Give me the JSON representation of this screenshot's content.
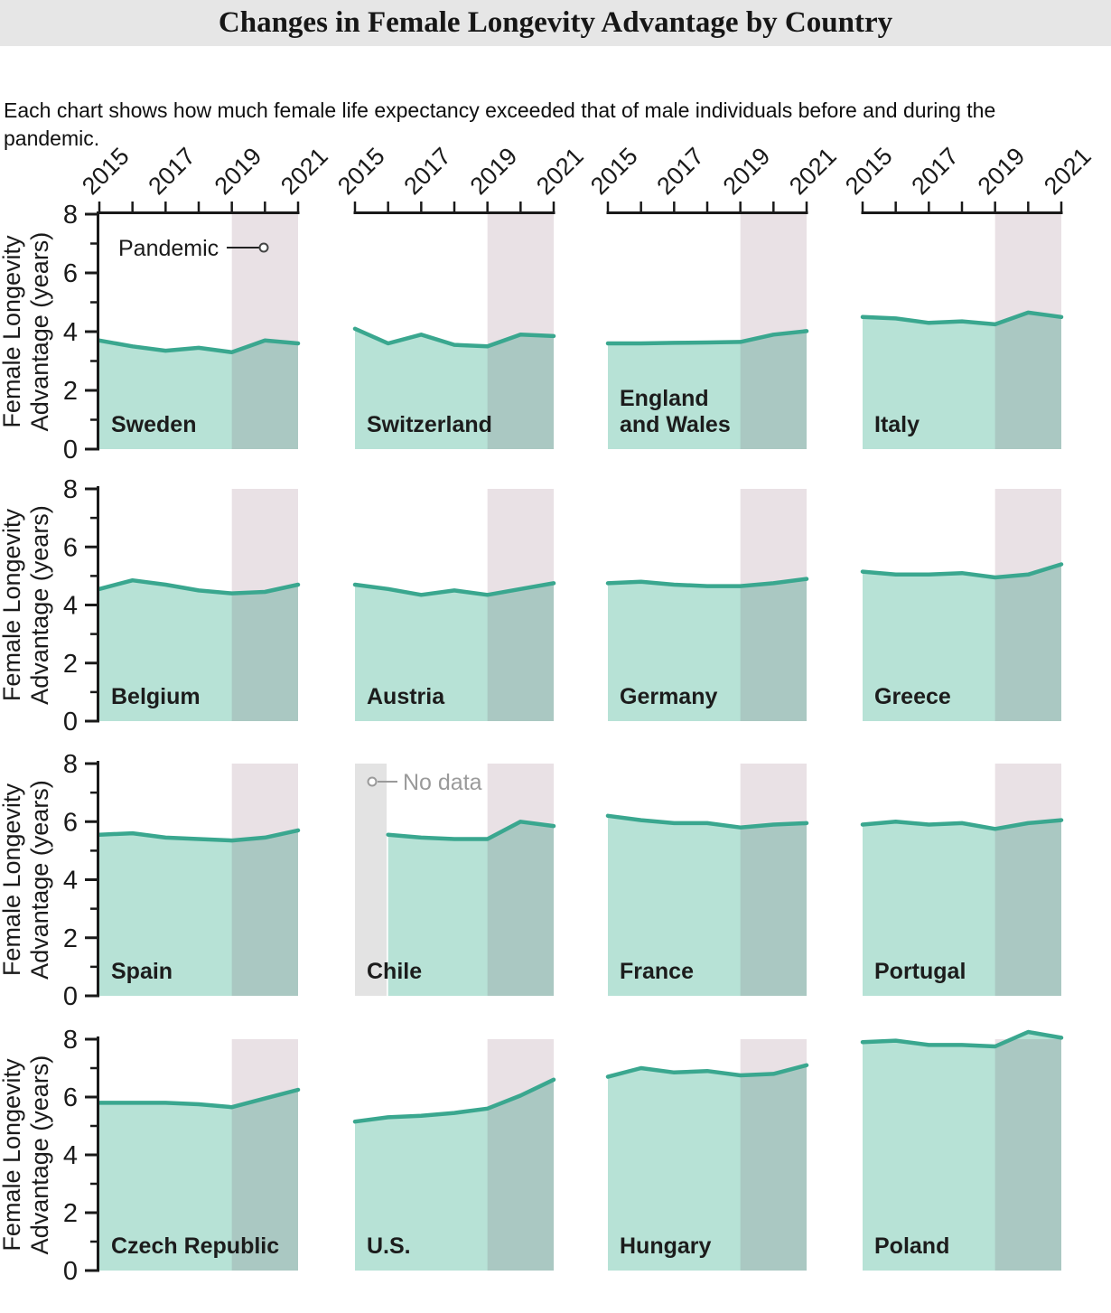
{
  "header": {
    "title": "Changes in Female Longevity Advantage by Country"
  },
  "subtitle": "Each chart shows how much female life expectancy exceeded that of male individuals before and during the pandemic.",
  "colors": {
    "title_bar_bg": "#e6e6e6",
    "line": "#3aa78f",
    "area_fill": "#b7e2d6",
    "area_fill_pandemic": "#aac8c2",
    "pandemic_band": "#e9e1e5",
    "no_data_band": "#e3e3e3",
    "axis": "#1a1a1a",
    "country_label": "#1c1c1c",
    "no_data_text": "#9a9a9a"
  },
  "chart_data": {
    "type": "area",
    "grid": {
      "rows": 4,
      "cols": 4
    },
    "x": [
      2015,
      2016,
      2017,
      2018,
      2019,
      2020,
      2021
    ],
    "x_tick_labels": [
      "2015",
      "2017",
      "2019",
      "2021"
    ],
    "ylim": [
      0,
      8
    ],
    "y_major_ticks": [
      0,
      2,
      4,
      6,
      8
    ],
    "y_minor_ticks": [
      1,
      3,
      5,
      7
    ],
    "ylabel_lines": [
      "Female Longevity",
      "Advantage (years)"
    ],
    "pandemic_span": [
      2019,
      2021
    ],
    "pandemic_label": "Pandemic",
    "no_data_label": "No data",
    "legend_position": "inside-first-chart",
    "series": [
      {
        "name": "Sweden",
        "label_lines": [
          "Sweden"
        ],
        "values": [
          3.7,
          3.5,
          3.35,
          3.45,
          3.3,
          3.7,
          3.6
        ],
        "pandemic_annotation": true
      },
      {
        "name": "Switzerland",
        "label_lines": [
          "Switzerland"
        ],
        "values": [
          4.1,
          3.6,
          3.9,
          3.55,
          3.5,
          3.9,
          3.85
        ]
      },
      {
        "name": "England and Wales",
        "label_lines": [
          "England",
          "and Wales"
        ],
        "values": [
          3.6,
          3.6,
          3.62,
          3.63,
          3.65,
          3.9,
          4.02
        ]
      },
      {
        "name": "Italy",
        "label_lines": [
          "Italy"
        ],
        "values": [
          4.5,
          4.45,
          4.3,
          4.35,
          4.25,
          4.65,
          4.5
        ]
      },
      {
        "name": "Belgium",
        "label_lines": [
          "Belgium"
        ],
        "values": [
          4.55,
          4.85,
          4.7,
          4.5,
          4.4,
          4.45,
          4.7
        ]
      },
      {
        "name": "Austria",
        "label_lines": [
          "Austria"
        ],
        "values": [
          4.7,
          4.55,
          4.35,
          4.5,
          4.35,
          4.55,
          4.75
        ]
      },
      {
        "name": "Germany",
        "label_lines": [
          "Germany"
        ],
        "values": [
          4.75,
          4.8,
          4.7,
          4.65,
          4.65,
          4.75,
          4.9
        ]
      },
      {
        "name": "Greece",
        "label_lines": [
          "Greece"
        ],
        "values": [
          5.15,
          5.05,
          5.05,
          5.1,
          4.95,
          5.05,
          5.4
        ]
      },
      {
        "name": "Spain",
        "label_lines": [
          "Spain"
        ],
        "values": [
          5.55,
          5.6,
          5.45,
          5.4,
          5.35,
          5.45,
          5.7
        ]
      },
      {
        "name": "Chile",
        "label_lines": [
          "Chile"
        ],
        "values": [
          null,
          5.55,
          5.45,
          5.4,
          5.4,
          6.0,
          5.85
        ],
        "no_data_year": 2015,
        "no_data_annotation": true
      },
      {
        "name": "France",
        "label_lines": [
          "France"
        ],
        "values": [
          6.2,
          6.05,
          5.95,
          5.95,
          5.8,
          5.9,
          5.95
        ]
      },
      {
        "name": "Portugal",
        "label_lines": [
          "Portugal"
        ],
        "values": [
          5.9,
          6.0,
          5.9,
          5.95,
          5.75,
          5.95,
          6.05
        ]
      },
      {
        "name": "Czech Republic",
        "label_lines": [
          "Czech Republic"
        ],
        "values": [
          5.8,
          5.8,
          5.8,
          5.75,
          5.65,
          5.95,
          6.25
        ]
      },
      {
        "name": "U.S.",
        "label_lines": [
          "U.S."
        ],
        "values": [
          5.15,
          5.3,
          5.35,
          5.45,
          5.6,
          6.05,
          6.6
        ]
      },
      {
        "name": "Hungary",
        "label_lines": [
          "Hungary"
        ],
        "values": [
          6.7,
          7.0,
          6.85,
          6.9,
          6.75,
          6.8,
          7.1
        ]
      },
      {
        "name": "Poland",
        "label_lines": [
          "Poland"
        ],
        "values": [
          7.9,
          7.95,
          7.8,
          7.8,
          7.75,
          8.25,
          8.05
        ]
      }
    ]
  }
}
